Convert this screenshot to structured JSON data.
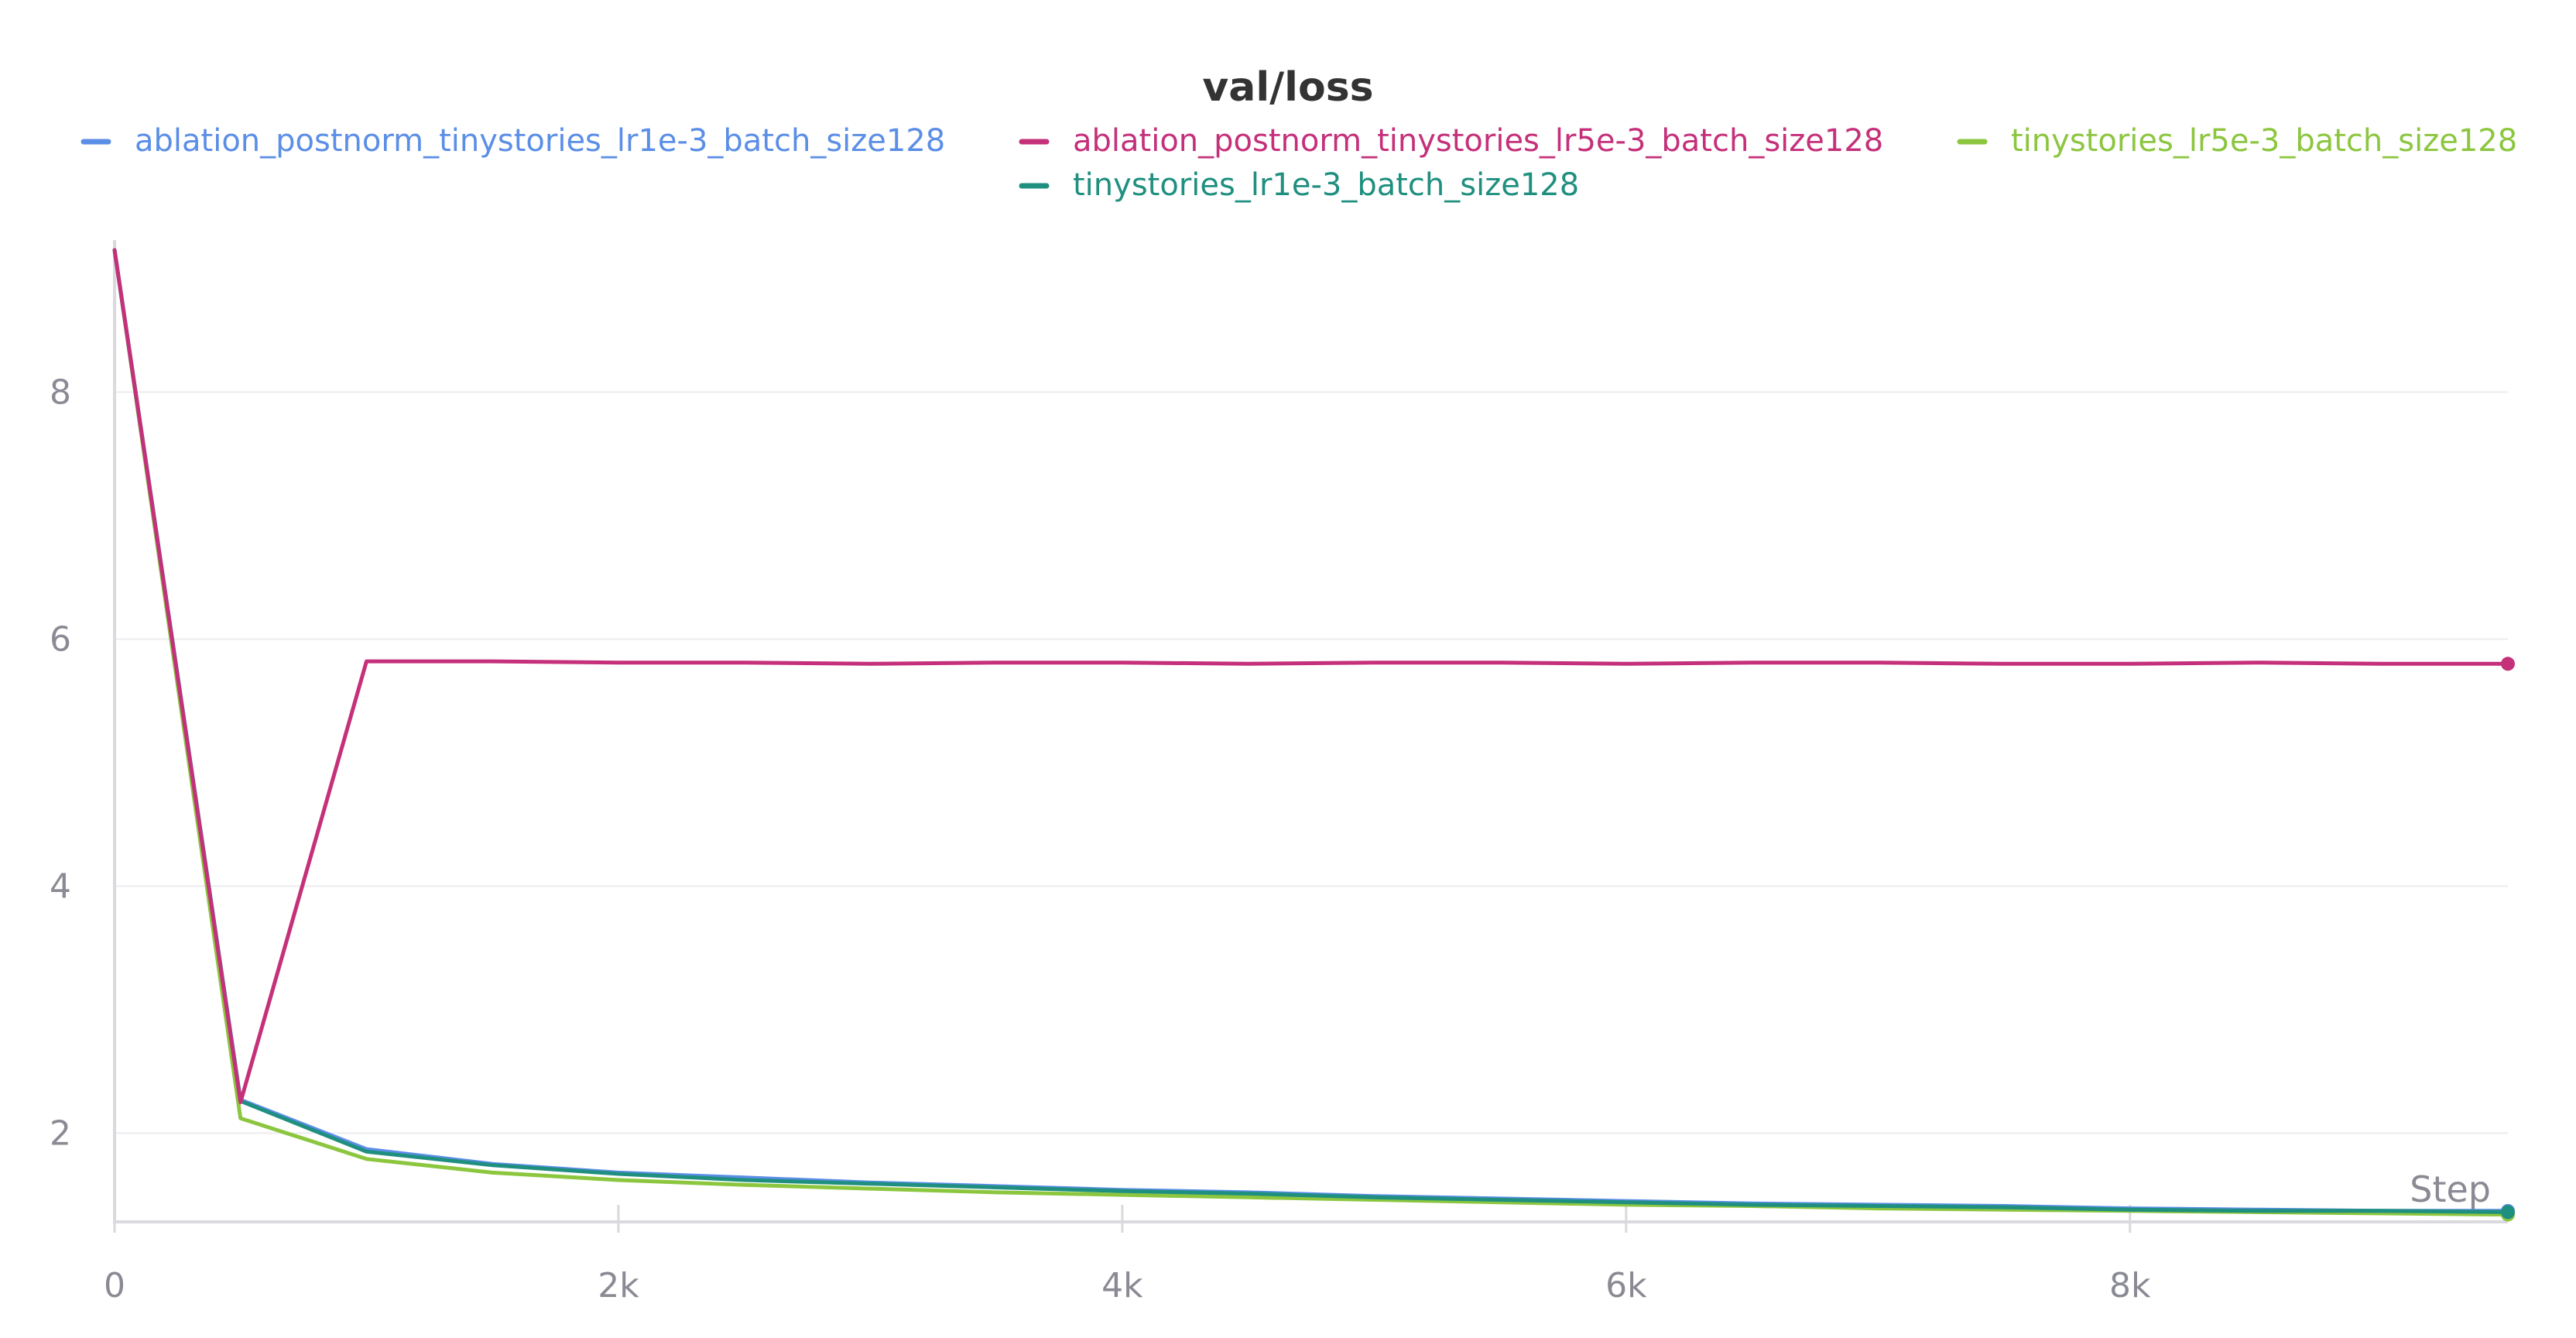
{
  "chart_data": {
    "type": "line",
    "title": "val/loss",
    "xlabel": "Step",
    "ylabel": "",
    "xlim": [
      0,
      9500
    ],
    "ylim": [
      1.3,
      9.2
    ],
    "x_ticks": [
      0,
      2000,
      4000,
      6000,
      8000
    ],
    "x_tick_labels": [
      "0",
      "2k",
      "4k",
      "6k",
      "8k"
    ],
    "y_ticks": [
      2,
      4,
      6,
      8
    ],
    "y_tick_labels": [
      "2",
      "4",
      "6",
      "8"
    ],
    "grid": true,
    "legend_position": "top",
    "series": [
      {
        "name": "ablation_postnorm_tinystories_lr1e-3_batch_size128",
        "color": "#5b8ee6",
        "x": [
          0,
          500,
          1000,
          1500,
          2000,
          2500,
          3000,
          3500,
          4000,
          4500,
          5000,
          5500,
          6000,
          6500,
          7000,
          7500,
          8000,
          8500,
          9000,
          9500
        ],
        "y": [
          9.15,
          2.27,
          1.87,
          1.75,
          1.68,
          1.64,
          1.6,
          1.57,
          1.54,
          1.52,
          1.49,
          1.47,
          1.45,
          1.43,
          1.42,
          1.41,
          1.39,
          1.38,
          1.37,
          1.37
        ]
      },
      {
        "name": "ablation_postnorm_tinystories_lr5e-3_batch_size128",
        "color": "#c5307a",
        "x": [
          0,
          500,
          1000,
          1500,
          2000,
          2500,
          3000,
          3500,
          4000,
          4500,
          5000,
          5500,
          6000,
          6500,
          7000,
          7500,
          8000,
          8500,
          9000,
          9500
        ],
        "y": [
          9.15,
          2.25,
          5.82,
          5.82,
          5.81,
          5.81,
          5.8,
          5.81,
          5.81,
          5.8,
          5.81,
          5.81,
          5.8,
          5.81,
          5.81,
          5.8,
          5.8,
          5.81,
          5.8,
          5.8
        ]
      },
      {
        "name": "tinystories_lr5e-3_batch_size128",
        "color": "#8cc63f",
        "x": [
          0,
          500,
          1000,
          1500,
          2000,
          2500,
          3000,
          3500,
          4000,
          4500,
          5000,
          5500,
          6000,
          6500,
          7000,
          7500,
          8000,
          8500,
          9000,
          9500
        ],
        "y": [
          9.15,
          2.12,
          1.79,
          1.68,
          1.62,
          1.58,
          1.55,
          1.52,
          1.5,
          1.48,
          1.46,
          1.44,
          1.42,
          1.41,
          1.39,
          1.38,
          1.37,
          1.36,
          1.35,
          1.34
        ]
      },
      {
        "name": "tinystories_lr1e-3_batch_size128",
        "color": "#1f8f7f",
        "x": [
          0,
          500,
          1000,
          1500,
          2000,
          2500,
          3000,
          3500,
          4000,
          4500,
          5000,
          5500,
          6000,
          6500,
          7000,
          7500,
          8000,
          8500,
          9000,
          9500
        ],
        "y": [
          9.15,
          2.26,
          1.85,
          1.74,
          1.67,
          1.62,
          1.59,
          1.56,
          1.53,
          1.51,
          1.48,
          1.46,
          1.44,
          1.42,
          1.41,
          1.4,
          1.38,
          1.37,
          1.37,
          1.36
        ]
      }
    ]
  }
}
